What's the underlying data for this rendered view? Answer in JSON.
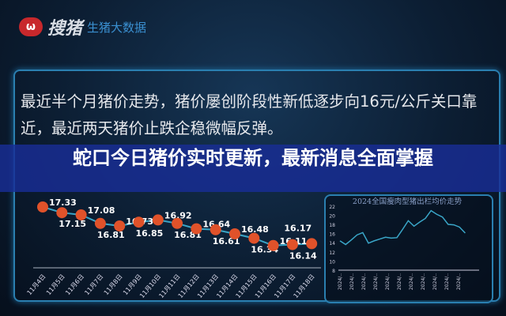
{
  "logo": {
    "mark": "ω",
    "brand": "搜猪",
    "sub": "生猪大数据"
  },
  "description": "最近半个月猪价走势，猪价屡创阶段性新低逐步向16元/公斤关口靠近，最近两天猪价止跌企稳微幅反弹。",
  "headline": "蛇口今日猪价实时更新，最新消息全面掌握",
  "colors": {
    "banner": "#182d96",
    "line": "#3aa6c8",
    "marker": "#e0522a",
    "panel_border": "#2a7fb0"
  },
  "chart_data": [
    {
      "type": "line",
      "categories": [
        "11月4日",
        "11月5日",
        "11月6日",
        "11月7日",
        "11月8日",
        "11月9日",
        "11月10日",
        "11月11日",
        "11月12日",
        "11月13日",
        "11月14日",
        "11月15日",
        "11月16日",
        "11月17日",
        "11月18日"
      ],
      "values": [
        17.33,
        17.15,
        17.08,
        16.81,
        16.73,
        16.85,
        16.92,
        16.81,
        16.64,
        16.61,
        16.48,
        16.34,
        16.11,
        16.14,
        16.17
      ],
      "data_labels": [
        "17.33",
        "17.15",
        "17.08",
        "16.81",
        "16.73",
        "16.85",
        "16.92",
        "16.81",
        "16.64",
        "16.61",
        "16.48",
        "16.34",
        "16.11",
        "16.14",
        "16.17"
      ]
    },
    {
      "type": "line",
      "title": "2024全国瘦肉型猪出栏均价走势",
      "ylim": [
        8,
        22
      ],
      "yticks": [
        "8",
        "10",
        "12",
        "14",
        "16",
        "18",
        "20",
        "22"
      ],
      "xticks": [
        "2024/..",
        "2024/..",
        "2024/..",
        "2024/..",
        "2024/..",
        "2024/..",
        "2024/..",
        "2024/..",
        "2024/..",
        "2024/..",
        "2024/.."
      ],
      "values": [
        14.4,
        13.6,
        14.6,
        15.7,
        16.2,
        13.9,
        14.4,
        14.8,
        15.2,
        15.0,
        15.1,
        16.9,
        18.8,
        17.6,
        18.5,
        19.3,
        21.0,
        20.2,
        19.6,
        18.0,
        17.9,
        17.4,
        16.1
      ]
    }
  ]
}
